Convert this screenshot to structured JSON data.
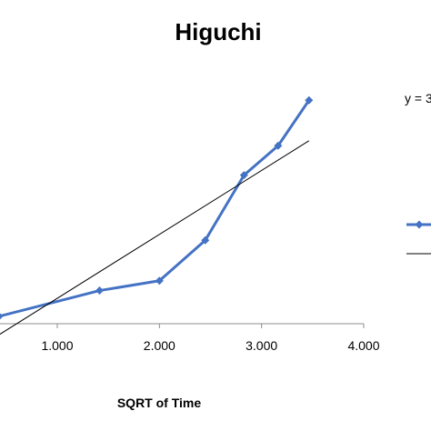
{
  "chart_data": {
    "type": "line",
    "title": "Higuchi",
    "xlabel": "SQRT of Time",
    "ylabel": "",
    "xlim": [
      0.43,
      4.0
    ],
    "ylim": [
      0,
      1
    ],
    "x_tick_labels": [
      "1.000",
      "2.000",
      "3.000",
      "4.000"
    ],
    "x_ticks": [
      1.0,
      2.0,
      3.0,
      4.0
    ],
    "grid": false,
    "legend_position": "right",
    "equation_text": "y = 3",
    "series": [
      {
        "name": "",
        "color": "#4472C4",
        "marker": "diamond",
        "points": [
          {
            "x": 0.43,
            "y": 0.03
          },
          {
            "x": 1.414,
            "y": 0.135
          },
          {
            "x": 2.0,
            "y": 0.175
          },
          {
            "x": 2.449,
            "y": 0.34
          },
          {
            "x": 2.828,
            "y": 0.605
          },
          {
            "x": 3.162,
            "y": 0.725
          },
          {
            "x": 3.464,
            "y": 0.91
          }
        ]
      },
      {
        "name": "",
        "color": "#000000",
        "type": "trendline",
        "points": [
          {
            "x": 0.43,
            "y": -0.045
          },
          {
            "x": 3.464,
            "y": 0.745
          }
        ]
      }
    ]
  }
}
